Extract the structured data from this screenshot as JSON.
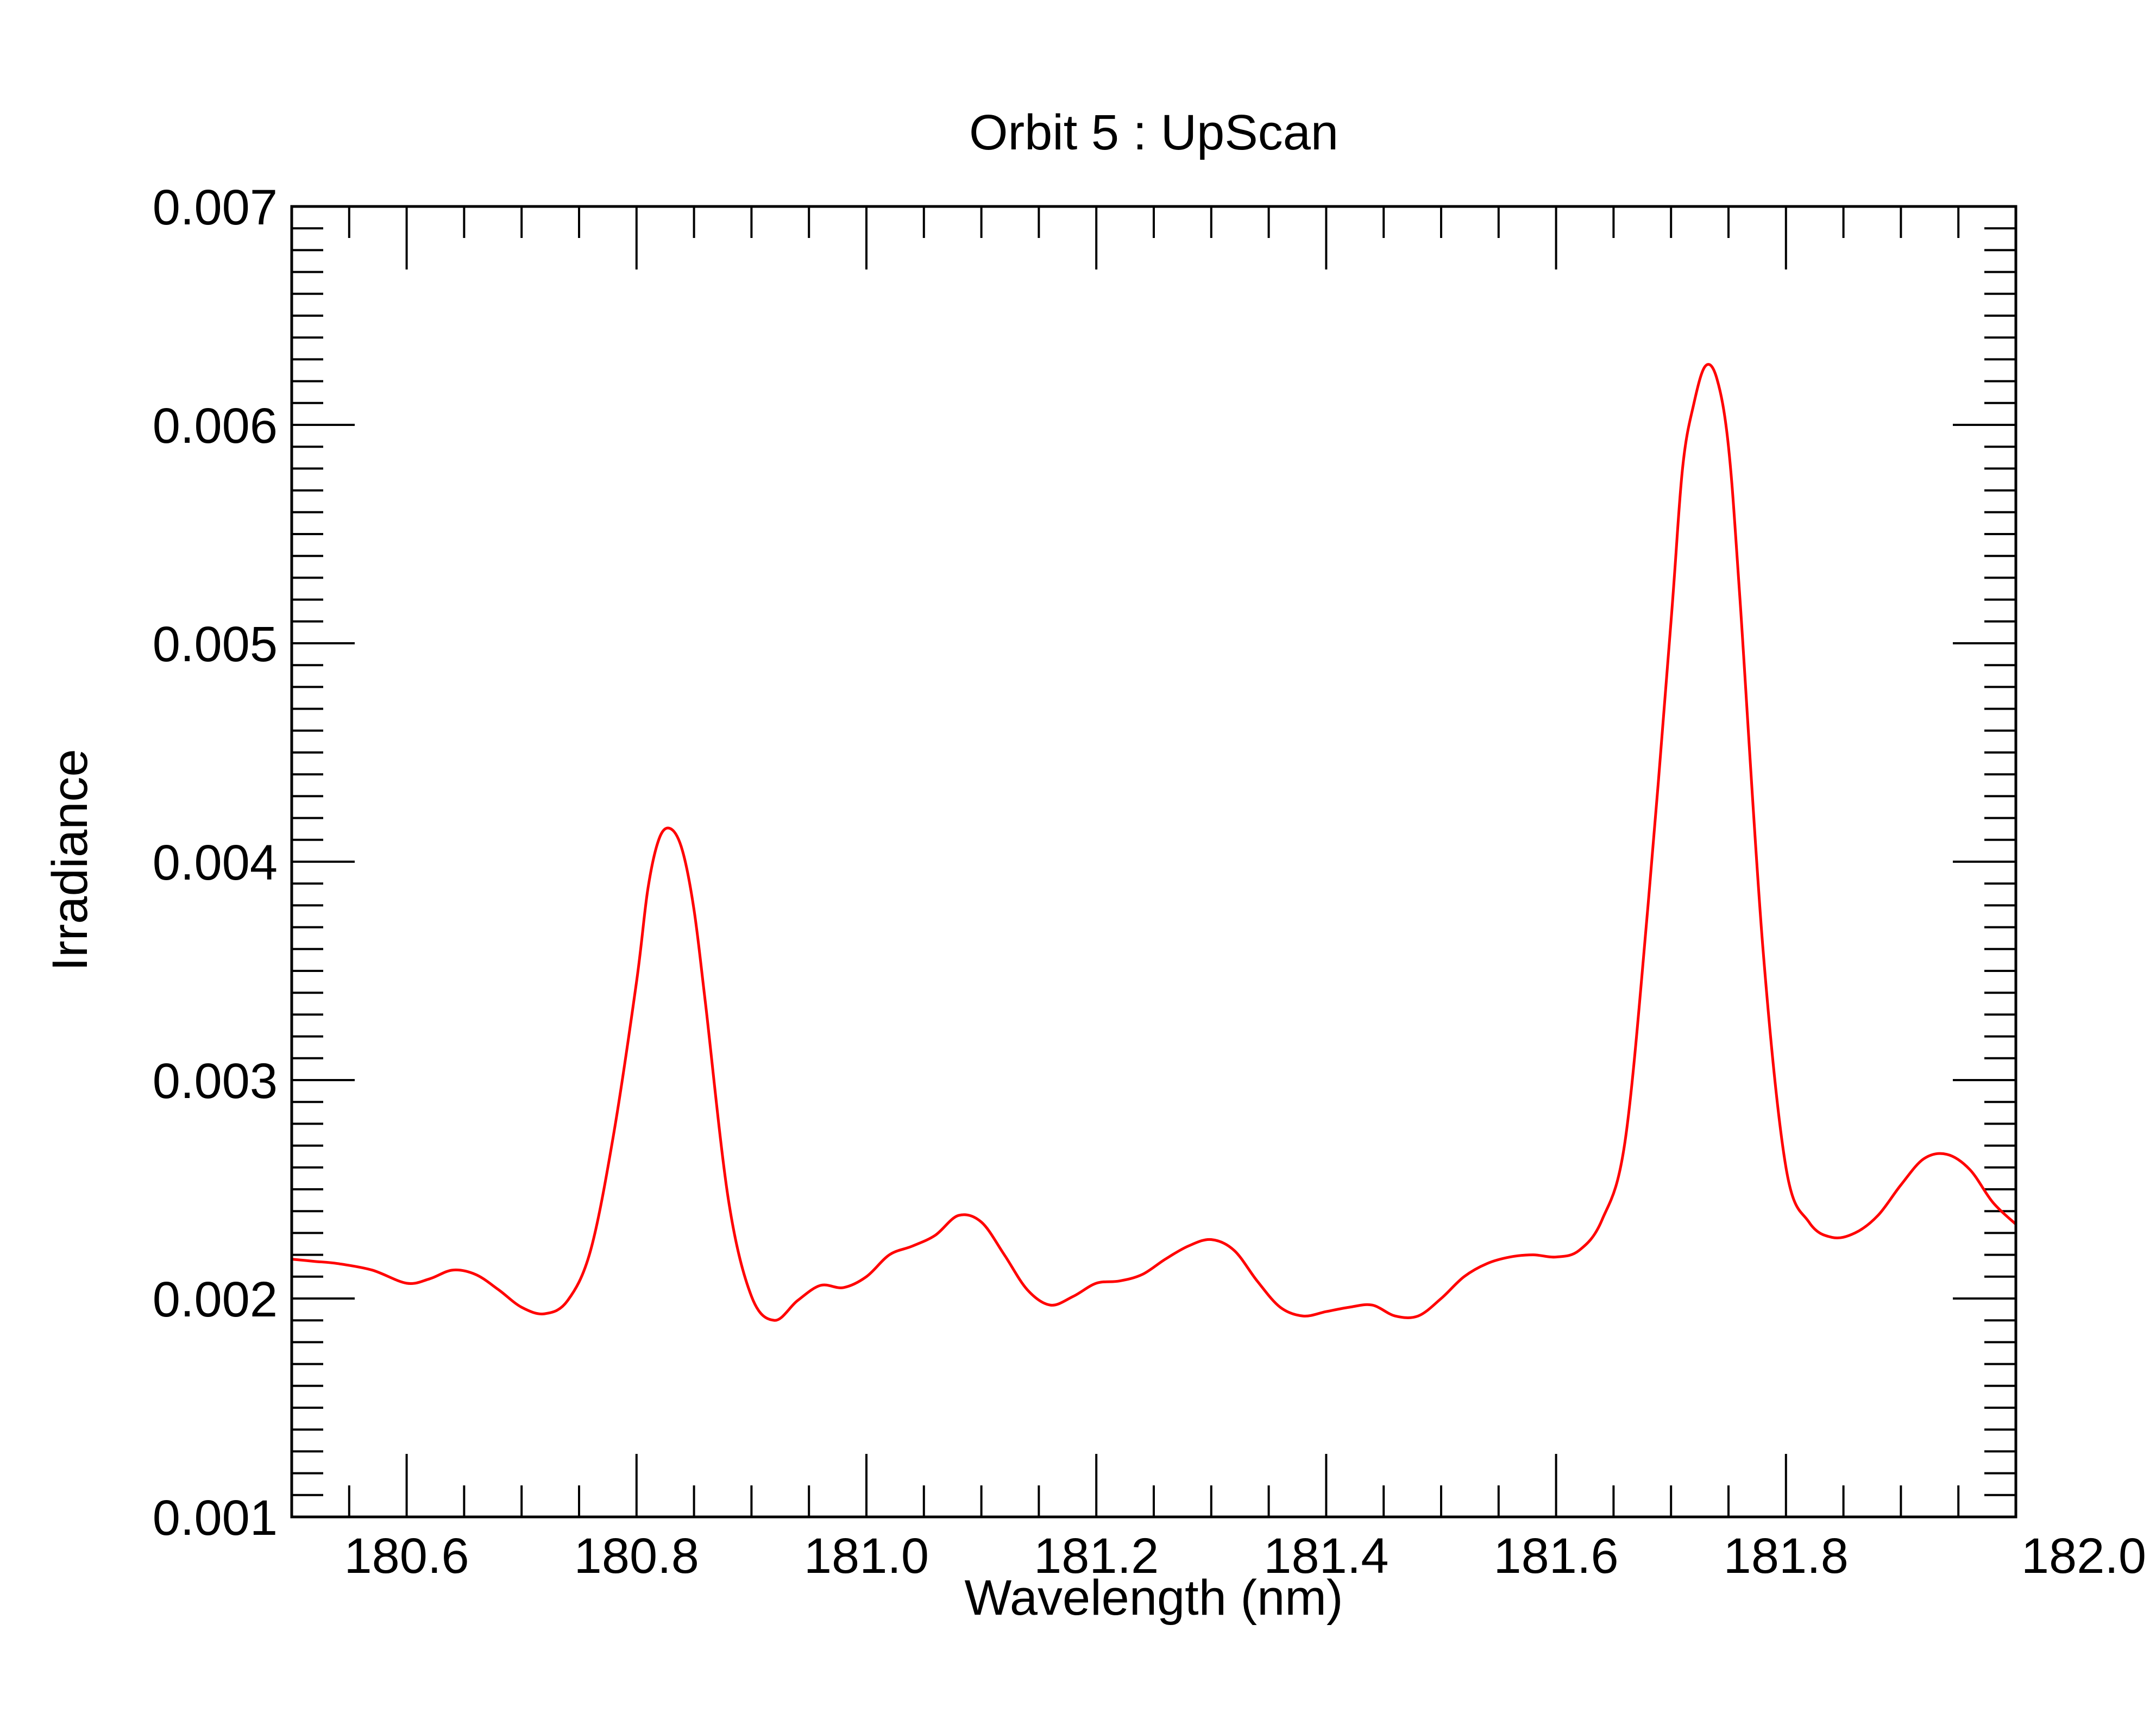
{
  "chart_data": {
    "type": "line",
    "title": "Orbit 5 : UpScan",
    "xlabel": "Wavelength (nm)",
    "ylabel": "Irradiance",
    "xlim": [
      180.5,
      182.0
    ],
    "ylim": [
      0.001,
      0.007
    ],
    "x_major_ticks": [
      180.6,
      180.8,
      181.0,
      181.2,
      181.4,
      181.6,
      181.8,
      182.0
    ],
    "x_tick_labels": [
      "180.6",
      "180.8",
      "181.0",
      "181.2",
      "181.4",
      "181.6",
      "181.8",
      "182.0"
    ],
    "x_minor_step": 0.05,
    "y_major_ticks": [
      0.001,
      0.002,
      0.003,
      0.004,
      0.005,
      0.006,
      0.007
    ],
    "y_tick_labels": [
      "0.001",
      "0.002",
      "0.003",
      "0.004",
      "0.005",
      "0.006",
      "0.007"
    ],
    "y_minor_step": 0.0001,
    "grid": false,
    "legend": "none",
    "series": [
      {
        "color": "#ff0000",
        "x": [
          180.5,
          180.52,
          180.54,
          180.57,
          180.6,
          180.62,
          180.64,
          180.66,
          180.68,
          180.7,
          180.72,
          180.74,
          180.76,
          180.78,
          180.8,
          180.81,
          180.82,
          180.83,
          180.84,
          180.85,
          180.86,
          180.88,
          180.9,
          180.92,
          180.94,
          180.96,
          180.98,
          181.0,
          181.02,
          181.04,
          181.06,
          181.08,
          181.1,
          181.12,
          181.14,
          181.16,
          181.18,
          181.2,
          181.22,
          181.24,
          181.26,
          181.28,
          181.3,
          181.32,
          181.34,
          181.36,
          181.38,
          181.4,
          181.42,
          181.44,
          181.46,
          181.48,
          181.5,
          181.52,
          181.54,
          181.56,
          181.58,
          181.6,
          181.62,
          181.64,
          181.66,
          181.68,
          181.7,
          181.71,
          181.72,
          181.73,
          181.74,
          181.75,
          181.76,
          181.78,
          181.8,
          181.82,
          181.84,
          181.86,
          181.88,
          181.9,
          181.92,
          181.94,
          181.96,
          181.98,
          182.0
        ],
        "y": [
          0.00218,
          0.00217,
          0.00216,
          0.00213,
          0.00207,
          0.00209,
          0.00213,
          0.00211,
          0.00204,
          0.00196,
          0.00193,
          0.00199,
          0.00222,
          0.00275,
          0.00345,
          0.00388,
          0.00411,
          0.00415,
          0.00405,
          0.00378,
          0.00335,
          0.00245,
          0.00201,
          0.0019,
          0.00199,
          0.00206,
          0.00205,
          0.0021,
          0.0022,
          0.00224,
          0.00229,
          0.00238,
          0.00235,
          0.0022,
          0.00204,
          0.00197,
          0.00201,
          0.00207,
          0.00208,
          0.00211,
          0.00218,
          0.00224,
          0.00227,
          0.00222,
          0.00208,
          0.00196,
          0.00192,
          0.00194,
          0.00196,
          0.00197,
          0.00192,
          0.00192,
          0.002,
          0.0021,
          0.00216,
          0.00219,
          0.0022,
          0.00219,
          0.00222,
          0.00236,
          0.00272,
          0.0038,
          0.0051,
          0.0058,
          0.0061,
          0.00627,
          0.00621,
          0.0059,
          0.0052,
          0.0036,
          0.0026,
          0.00235,
          0.00228,
          0.0023,
          0.00238,
          0.00252,
          0.00264,
          0.00266,
          0.00259,
          0.00244,
          0.00234
        ]
      }
    ]
  }
}
